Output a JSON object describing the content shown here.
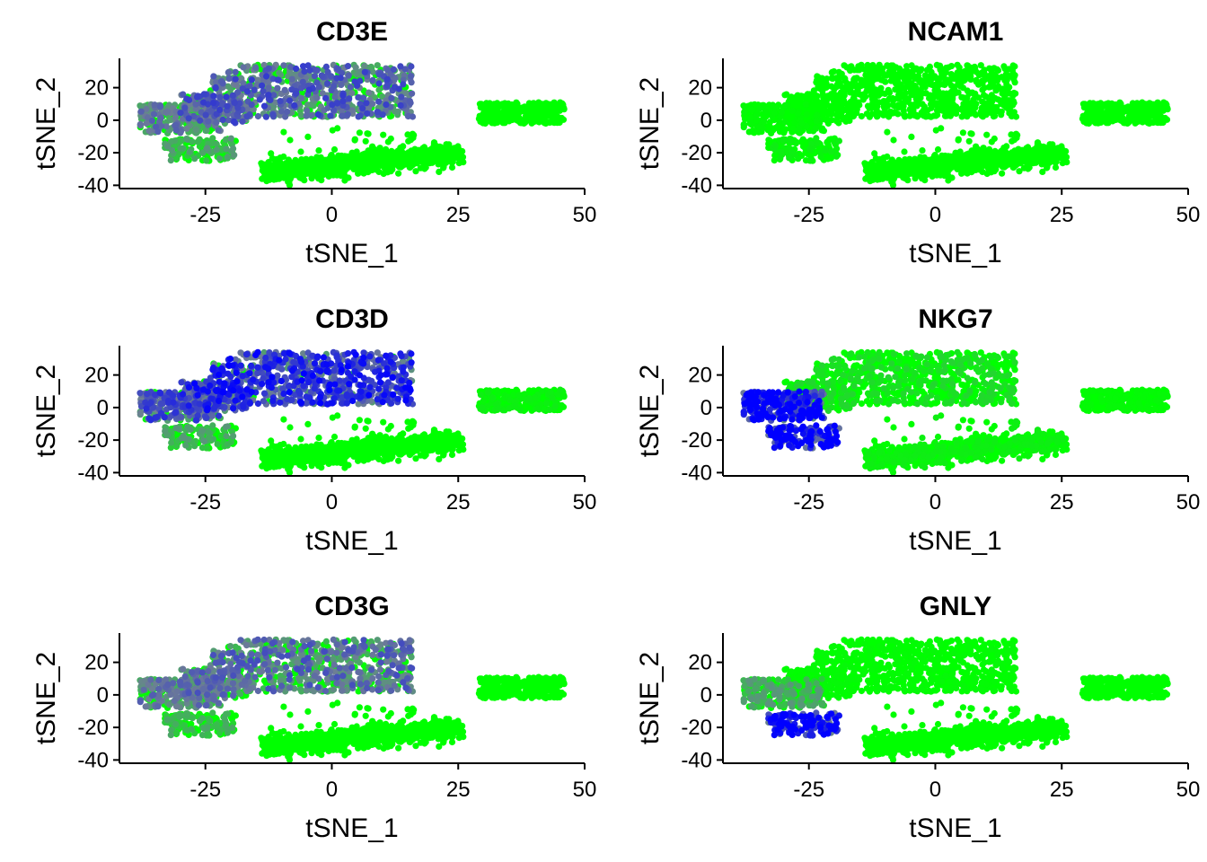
{
  "figure": {
    "low_color": "#00FF00",
    "high_color": "#0000FF",
    "background": "#FFFFFF"
  },
  "chart_data": [
    {
      "type": "scatter",
      "title": "CD3E",
      "xlabel": "tSNE_1",
      "ylabel": "tSNE_2",
      "xlim": [
        -42,
        50
      ],
      "ylim": [
        -42,
        38
      ],
      "xticks": [
        "-25",
        "0",
        "25",
        "50"
      ],
      "xtick_values": [
        -25,
        0,
        25,
        50
      ],
      "yticks": [
        "20",
        "0",
        "-20",
        "-40"
      ],
      "ytick_values": [
        20,
        0,
        -20,
        -40
      ],
      "grid": false,
      "legend": "none",
      "expression": {
        "upper_cluster": 0.55,
        "left_cluster": 0.45,
        "nk_cluster": 0.3,
        "lower_cluster": 0.0,
        "right_cluster": 0.0
      }
    },
    {
      "type": "scatter",
      "title": "NCAM1",
      "xlabel": "tSNE_1",
      "ylabel": "tSNE_2",
      "xlim": [
        -42,
        50
      ],
      "ylim": [
        -42,
        38
      ],
      "xticks": [
        "-25",
        "0",
        "25",
        "50"
      ],
      "xtick_values": [
        -25,
        0,
        25,
        50
      ],
      "yticks": [
        "20",
        "0",
        "-20",
        "-40"
      ],
      "ytick_values": [
        20,
        0,
        -20,
        -40
      ],
      "grid": false,
      "legend": "none",
      "expression": {
        "upper_cluster": 0.0,
        "left_cluster": 0.02,
        "nk_cluster": 0.05,
        "lower_cluster": 0.0,
        "right_cluster": 0.0
      }
    },
    {
      "type": "scatter",
      "title": "CD3D",
      "xlabel": "tSNE_1",
      "ylabel": "tSNE_2",
      "xlim": [
        -42,
        50
      ],
      "ylim": [
        -42,
        38
      ],
      "xticks": [
        "-25",
        "0",
        "25",
        "50"
      ],
      "xtick_values": [
        -25,
        0,
        25,
        50
      ],
      "yticks": [
        "20",
        "0",
        "-20",
        "-40"
      ],
      "ytick_values": [
        20,
        0,
        -20,
        -40
      ],
      "grid": false,
      "legend": "none",
      "expression": {
        "upper_cluster": 0.72,
        "left_cluster": 0.6,
        "nk_cluster": 0.3,
        "lower_cluster": 0.0,
        "right_cluster": 0.05
      }
    },
    {
      "type": "scatter",
      "title": "NKG7",
      "xlabel": "tSNE_1",
      "ylabel": "tSNE_2",
      "xlim": [
        -42,
        50
      ],
      "ylim": [
        -42,
        38
      ],
      "xticks": [
        "-25",
        "0",
        "25",
        "50"
      ],
      "xtick_values": [
        -25,
        0,
        25,
        50
      ],
      "yticks": [
        "20",
        "0",
        "-20",
        "-40"
      ],
      "ytick_values": [
        20,
        0,
        -20,
        -40
      ],
      "grid": false,
      "legend": "none",
      "expression": {
        "upper_cluster": 0.12,
        "left_cluster": 0.85,
        "nk_cluster": 0.95,
        "lower_cluster": 0.05,
        "right_cluster": 0.02
      }
    },
    {
      "type": "scatter",
      "title": "CD3G",
      "xlabel": "tSNE_1",
      "ylabel": "tSNE_2",
      "xlim": [
        -42,
        50
      ],
      "ylim": [
        -42,
        38
      ],
      "xticks": [
        "-25",
        "0",
        "25",
        "50"
      ],
      "xtick_values": [
        -25,
        0,
        25,
        50
      ],
      "yticks": [
        "20",
        "0",
        "-20",
        "-40"
      ],
      "ytick_values": [
        20,
        0,
        -20,
        -40
      ],
      "grid": false,
      "legend": "none",
      "expression": {
        "upper_cluster": 0.5,
        "left_cluster": 0.45,
        "nk_cluster": 0.25,
        "lower_cluster": 0.0,
        "right_cluster": 0.0
      }
    },
    {
      "type": "scatter",
      "title": "GNLY",
      "xlabel": "tSNE_1",
      "ylabel": "tSNE_2",
      "xlim": [
        -42,
        50
      ],
      "ylim": [
        -42,
        38
      ],
      "xticks": [
        "-25",
        "0",
        "25",
        "50"
      ],
      "xtick_values": [
        -25,
        0,
        25,
        50
      ],
      "yticks": [
        "20",
        "0",
        "-20",
        "-40"
      ],
      "ytick_values": [
        20,
        0,
        -20,
        -40
      ],
      "grid": false,
      "legend": "none",
      "expression": {
        "upper_cluster": 0.02,
        "left_cluster": 0.3,
        "nk_cluster": 0.92,
        "lower_cluster": 0.0,
        "right_cluster": 0.0
      }
    }
  ]
}
